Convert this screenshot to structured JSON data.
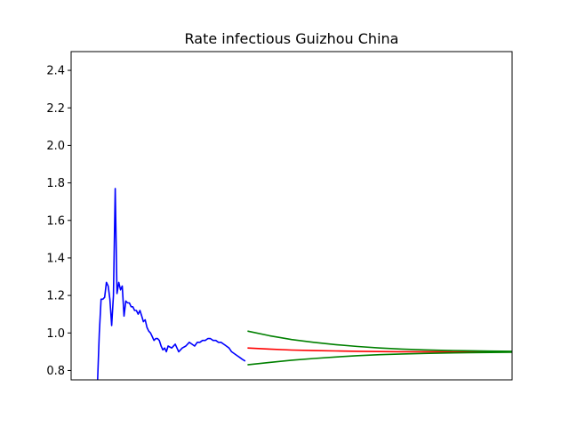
{
  "chart_data": {
    "type": "line",
    "title": "Rate infectious Guizhou China",
    "xlabel": "",
    "ylabel": "",
    "x_ticks_shown": false,
    "ylim": [
      0.75,
      2.5
    ],
    "xlim": [
      0,
      100
    ],
    "yticks": [
      "0.8",
      "1.0",
      "1.2",
      "1.4",
      "1.6",
      "1.8",
      "2.0",
      "2.2",
      "2.4"
    ],
    "grid": false,
    "series": [
      {
        "color": "#0000ff",
        "x": [
          6,
          6.4,
          6.8,
          7.2,
          7.6,
          8,
          8.4,
          8.8,
          9.2,
          9.6,
          10,
          10.4,
          10.8,
          11.2,
          11.6,
          12,
          12.4,
          12.8,
          13.2,
          13.6,
          14,
          14.4,
          14.8,
          15.2,
          15.6,
          16,
          16.4,
          16.8,
          17.2,
          17.6,
          18,
          18.4,
          18.8,
          19.2,
          19.6,
          20,
          20.4,
          20.8,
          21.2,
          21.6,
          22,
          22.8,
          23.6,
          24.4,
          25.2,
          26,
          26.8,
          27.4,
          28,
          28.6,
          29.2,
          29.8,
          30.4,
          31,
          31.6,
          32.2,
          32.8,
          33.4,
          34,
          34.6,
          35.2,
          35.8,
          36.4,
          37,
          37.6,
          38.2,
          38.8,
          39.5
        ],
        "y": [
          0.75,
          1.0,
          1.18,
          1.18,
          1.19,
          1.27,
          1.25,
          1.18,
          1.04,
          1.2,
          1.77,
          1.21,
          1.27,
          1.23,
          1.25,
          1.09,
          1.17,
          1.16,
          1.16,
          1.14,
          1.14,
          1.12,
          1.12,
          1.1,
          1.12,
          1.09,
          1.06,
          1.07,
          1.03,
          1.01,
          1.0,
          0.98,
          0.96,
          0.97,
          0.97,
          0.96,
          0.93,
          0.91,
          0.92,
          0.9,
          0.93,
          0.92,
          0.94,
          0.9,
          0.92,
          0.93,
          0.95,
          0.94,
          0.93,
          0.95,
          0.95,
          0.96,
          0.96,
          0.97,
          0.97,
          0.96,
          0.96,
          0.95,
          0.95,
          0.94,
          0.93,
          0.92,
          0.9,
          0.89,
          0.88,
          0.87,
          0.86,
          0.85
        ]
      },
      {
        "color": "#ff0000",
        "x": [
          40,
          45,
          50,
          55,
          60,
          65,
          70,
          75,
          80,
          85,
          90,
          95,
          100,
          105
        ],
        "y": [
          0.92,
          0.914,
          0.909,
          0.906,
          0.904,
          0.902,
          0.901,
          0.9,
          0.9,
          0.899,
          0.899,
          0.899,
          0.899,
          0.899
        ]
      },
      {
        "color": "#008000",
        "x": [
          40,
          45,
          50,
          55,
          60,
          65,
          70,
          75,
          80,
          85,
          90,
          95,
          100,
          105
        ],
        "y": [
          1.01,
          0.985,
          0.965,
          0.95,
          0.938,
          0.928,
          0.92,
          0.914,
          0.91,
          0.907,
          0.905,
          0.903,
          0.902,
          0.902
        ]
      },
      {
        "color": "#008000",
        "x": [
          40,
          45,
          50,
          55,
          60,
          65,
          70,
          75,
          80,
          85,
          90,
          95,
          100,
          105
        ],
        "y": [
          0.83,
          0.843,
          0.855,
          0.864,
          0.872,
          0.879,
          0.884,
          0.888,
          0.891,
          0.893,
          0.895,
          0.896,
          0.897,
          0.898
        ]
      }
    ]
  }
}
